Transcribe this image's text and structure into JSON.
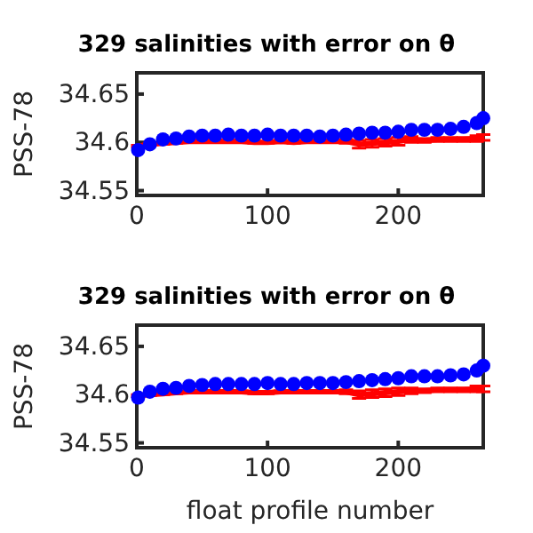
{
  "chart_data": [
    {
      "type": "scatter",
      "title": "329 salinities with error on θ",
      "ylabel": "PSS-78",
      "xlim": [
        0,
        265
      ],
      "xticks": [
        0,
        100,
        200
      ],
      "ylim": [
        34.545,
        34.672
      ],
      "yticks": [
        34.55,
        34.6,
        34.65
      ],
      "grid": false,
      "series": [
        {
          "type": "line",
          "marker": "none",
          "color": "#ff0000",
          "x": [
            1,
            10,
            20,
            30,
            40,
            50,
            60,
            70,
            80,
            90,
            100,
            110,
            120,
            130,
            140,
            150,
            160,
            170,
            180,
            190,
            200,
            210,
            220,
            230,
            240,
            250,
            260,
            265
          ],
          "values": [
            34.596,
            34.598,
            34.599,
            34.6,
            34.601,
            34.601,
            34.601,
            34.601,
            34.601,
            34.6,
            34.6,
            34.601,
            34.6,
            34.601,
            34.601,
            34.601,
            34.601,
            34.598,
            34.599,
            34.6,
            34.601,
            34.603,
            34.602,
            34.603,
            34.603,
            34.603,
            34.604,
            34.605
          ],
          "errors": [
            0.001,
            0.001,
            0.001,
            0.001,
            0.001,
            0.001,
            0.001,
            0.001,
            0.001,
            0.001,
            0.001,
            0.001,
            0.001,
            0.001,
            0.001,
            0.001,
            0.002,
            0.004,
            0.004,
            0.004,
            0.004,
            0.003,
            0.002,
            0.002,
            0.002,
            0.002,
            0.003,
            0.003
          ]
        },
        {
          "type": "scatter",
          "marker": "circle",
          "color": "#0000ff",
          "x": [
            1,
            10,
            20,
            30,
            40,
            50,
            60,
            70,
            80,
            90,
            100,
            110,
            120,
            130,
            140,
            150,
            160,
            170,
            180,
            190,
            200,
            210,
            220,
            230,
            240,
            250,
            260,
            265
          ],
          "values": [
            34.592,
            34.598,
            34.603,
            34.604,
            34.606,
            34.607,
            34.607,
            34.608,
            34.607,
            34.607,
            34.608,
            34.607,
            34.607,
            34.607,
            34.606,
            34.607,
            34.608,
            34.609,
            34.61,
            34.61,
            34.611,
            34.613,
            34.613,
            34.613,
            34.614,
            34.616,
            34.62,
            34.625
          ]
        }
      ]
    },
    {
      "type": "scatter",
      "title": "329 salinities with error on θ",
      "ylabel": "PSS-78",
      "xlabel": "float profile number",
      "xlim": [
        0,
        265
      ],
      "xticks": [
        0,
        100,
        200
      ],
      "ylim": [
        34.545,
        34.672
      ],
      "yticks": [
        34.55,
        34.6,
        34.65
      ],
      "grid": false,
      "series": [
        {
          "type": "line",
          "marker": "none",
          "color": "#ff0000",
          "x": [
            1,
            10,
            20,
            30,
            40,
            50,
            60,
            70,
            80,
            90,
            100,
            110,
            120,
            130,
            140,
            150,
            160,
            170,
            180,
            190,
            200,
            210,
            220,
            230,
            240,
            250,
            260,
            265
          ],
          "values": [
            34.599,
            34.6,
            34.601,
            34.602,
            34.603,
            34.603,
            34.603,
            34.603,
            34.603,
            34.602,
            34.602,
            34.603,
            34.603,
            34.603,
            34.603,
            34.603,
            34.603,
            34.6,
            34.601,
            34.602,
            34.603,
            34.604,
            34.604,
            34.605,
            34.605,
            34.605,
            34.606,
            34.606
          ],
          "errors": [
            0.001,
            0.001,
            0.001,
            0.001,
            0.001,
            0.001,
            0.001,
            0.001,
            0.001,
            0.001,
            0.001,
            0.001,
            0.001,
            0.001,
            0.001,
            0.001,
            0.002,
            0.004,
            0.004,
            0.004,
            0.004,
            0.003,
            0.002,
            0.002,
            0.002,
            0.002,
            0.003,
            0.003
          ]
        },
        {
          "type": "scatter",
          "marker": "circle",
          "color": "#0000ff",
          "x": [
            1,
            10,
            20,
            30,
            40,
            50,
            60,
            70,
            80,
            90,
            100,
            110,
            120,
            130,
            140,
            150,
            160,
            170,
            180,
            190,
            200,
            210,
            220,
            230,
            240,
            250,
            260,
            265
          ],
          "values": [
            34.597,
            34.603,
            34.606,
            34.607,
            34.609,
            34.61,
            34.611,
            34.611,
            34.611,
            34.611,
            34.612,
            34.611,
            34.611,
            34.612,
            34.612,
            34.612,
            34.613,
            34.614,
            34.615,
            34.616,
            34.617,
            34.619,
            34.619,
            34.619,
            34.62,
            34.621,
            34.625,
            34.63
          ]
        }
      ]
    }
  ]
}
